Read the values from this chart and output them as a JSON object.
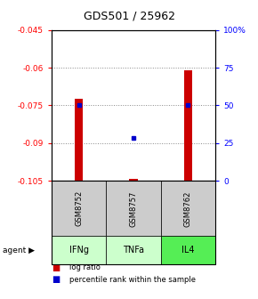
{
  "title": "GDS501 / 25962",
  "samples": [
    "GSM8752",
    "GSM8757",
    "GSM8762"
  ],
  "agents": [
    "IFNg",
    "TNFa",
    "IL4"
  ],
  "log_ratios": [
    -0.0725,
    -0.1043,
    -0.061
  ],
  "percentile_vals": [
    -0.075,
    -0.088,
    -0.075
  ],
  "ylim_left": [
    -0.105,
    -0.045
  ],
  "ylim_right": [
    0,
    100
  ],
  "yticks_left": [
    -0.105,
    -0.09,
    -0.075,
    -0.06,
    -0.045
  ],
  "yticks_left_labels": [
    "-0.105",
    "-0.09",
    "-0.075",
    "-0.06",
    "-0.045"
  ],
  "yticks_right": [
    0,
    25,
    50,
    75,
    100
  ],
  "yticks_right_labels": [
    "0",
    "25",
    "50",
    "75",
    "100%"
  ],
  "bar_color": "#cc0000",
  "dot_color": "#0000cc",
  "agent_colors": [
    "#ccffcc",
    "#ccffcc",
    "#66ee66"
  ],
  "sample_box_color": "#cccccc",
  "bar_width": 0.15
}
